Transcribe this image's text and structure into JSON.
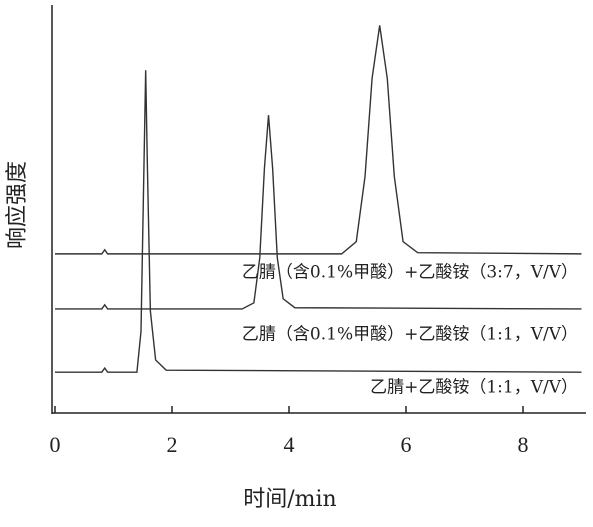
{
  "chart_data": {
    "type": "line",
    "x_label": "时间/min",
    "y_label": "响应强度",
    "xlim": [
      0,
      9
    ],
    "xticks": [
      0,
      2,
      4,
      6,
      8
    ],
    "ylim": [
      0,
      100
    ],
    "series": [
      {
        "name": "乙腈+乙酸铵（1:1，V/V）",
        "color": "#333333",
        "x": [
          0,
          0.8,
          0.85,
          0.9,
          1.4,
          1.47,
          1.52,
          1.55,
          1.58,
          1.63,
          1.72,
          1.9,
          9
        ],
        "values": [
          10,
          10,
          11,
          10,
          10,
          20,
          60,
          84,
          60,
          25,
          13,
          10.5,
          10
        ]
      },
      {
        "name": "乙腈（含0.1%甲酸）+乙酸铵（1:1，V/V）",
        "color": "#333333",
        "x": [
          0,
          0.8,
          0.85,
          0.9,
          3.2,
          3.4,
          3.5,
          3.58,
          3.65,
          3.72,
          3.8,
          3.9,
          4.1,
          9
        ],
        "values": [
          25.5,
          25.5,
          26.5,
          25.5,
          25.5,
          27,
          38,
          60,
          73,
          60,
          38,
          28,
          25.8,
          25.5
        ]
      },
      {
        "name": "乙腈（含0.1%甲酸）+乙酸铵（3:7，V/V）",
        "color": "#333333",
        "x": [
          0,
          0.8,
          0.85,
          0.9,
          4.9,
          5.15,
          5.3,
          5.42,
          5.55,
          5.68,
          5.8,
          5.95,
          6.2,
          9
        ],
        "values": [
          39,
          39,
          40,
          39,
          39,
          42,
          58,
          82,
          95,
          82,
          58,
          42,
          39.3,
          39
        ]
      }
    ]
  }
}
